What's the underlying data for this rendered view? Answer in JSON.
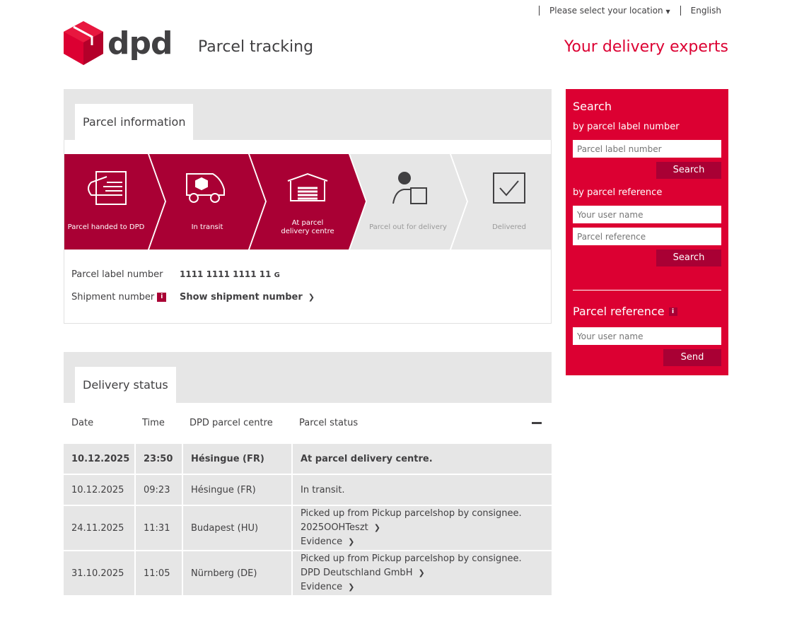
{
  "topbar": {
    "location": "Please select your location",
    "language": "English"
  },
  "header": {
    "logo": "dpd",
    "title": "Parcel tracking",
    "tagline": "Your delivery experts"
  },
  "parcel_info": {
    "tab": "Parcel information",
    "steps": [
      {
        "label": "Parcel handed to DPD",
        "done": true
      },
      {
        "label": "In transit",
        "done": true
      },
      {
        "label": "At parcel delivery centre",
        "done": true
      },
      {
        "label": "Parcel out for delivery",
        "done": false
      },
      {
        "label": "Delivered",
        "done": false
      }
    ],
    "label_number_label": "Parcel label number",
    "label_number": "1111 1111 1111 11",
    "label_suffix": "G",
    "shipment_label": "Shipment number",
    "show_shipment": "Show shipment number"
  },
  "delivery": {
    "tab": "Delivery status",
    "headers": [
      "Date",
      "Time",
      "DPD parcel centre",
      "Parcel status"
    ],
    "rows": [
      {
        "date": "10.12.2025",
        "time": "23:50",
        "centre": "Hésingue (FR)",
        "status": "At parcel delivery centre.",
        "bold": true
      },
      {
        "date": "10.12.2025",
        "time": "09:23",
        "centre": "Hésingue (FR)",
        "status": "In transit."
      },
      {
        "date": "24.11.2025",
        "time": "11:31",
        "centre": "Budapest (HU)",
        "status": "Picked up from Pickup parcelshop by consignee.",
        "link": "2025OOHTeszt",
        "evidence": "Evidence"
      },
      {
        "date": "31.10.2025",
        "time": "11:05",
        "centre": "Nürnberg (DE)",
        "status": "Picked up from Pickup parcelshop by consignee.",
        "link": "DPD Deutschland GmbH",
        "evidence": "Evidence"
      }
    ]
  },
  "sidebar": {
    "title": "Search",
    "by_label": "by parcel label number",
    "label_placeholder": "Parcel label number",
    "search": "Search",
    "by_ref": "by parcel reference",
    "user_placeholder": "Your user name",
    "ref_placeholder": "Parcel reference",
    "ref_title": "Parcel reference",
    "send": "Send"
  },
  "colors": {
    "brand": "#dc0032",
    "progress": "#a90034",
    "inactive": "#e6e6e6"
  }
}
